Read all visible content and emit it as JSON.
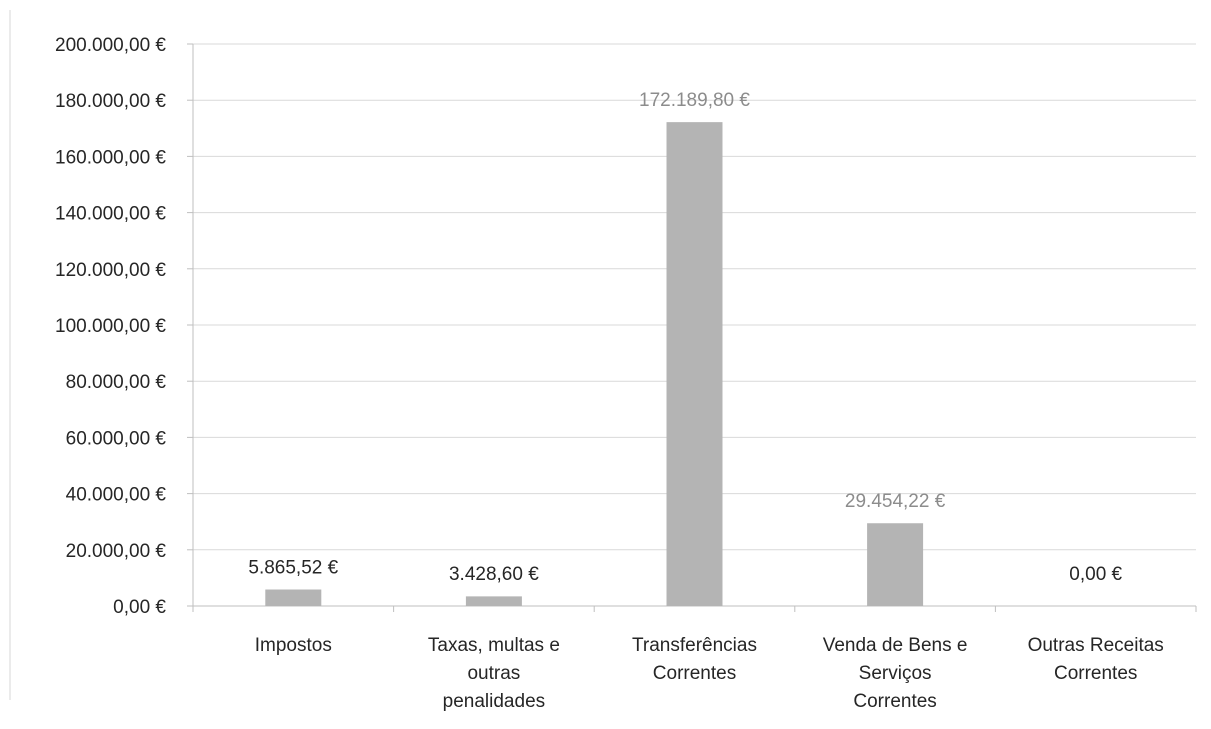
{
  "chart_data": {
    "type": "bar",
    "categories": [
      [
        "Impostos"
      ],
      [
        "Taxas, multas e",
        "outras",
        "penalidades"
      ],
      [
        "Transferências",
        "Correntes"
      ],
      [
        "Venda de Bens e",
        "Serviços",
        "Correntes"
      ],
      [
        "Outras Receitas",
        "Correntes"
      ]
    ],
    "values": [
      5865.52,
      3428.6,
      172189.8,
      29454.22,
      0
    ],
    "data_labels": [
      "5.865,52 €",
      "3.428,60 €",
      "172.189,80 €",
      "29.454,22 €",
      "0,00 €"
    ],
    "data_label_colors": [
      "#262626",
      "#262626",
      "#8c8c8c",
      "#8c8c8c",
      "#262626"
    ],
    "y_ticks": [
      "0,00 €",
      "20.000,00 €",
      "40.000,00 €",
      "60.000,00 €",
      "80.000,00 €",
      "100.000,00 €",
      "120.000,00 €",
      "140.000,00 €",
      "160.000,00 €",
      "180.000,00 €",
      "200.000,00 €"
    ],
    "ylim": [
      0,
      200000
    ],
    "grid": true,
    "legend": "none",
    "bar_color": "#b4b4b4",
    "grid_color": "#d9d9d9",
    "axis_color": "#bfbfbf"
  }
}
